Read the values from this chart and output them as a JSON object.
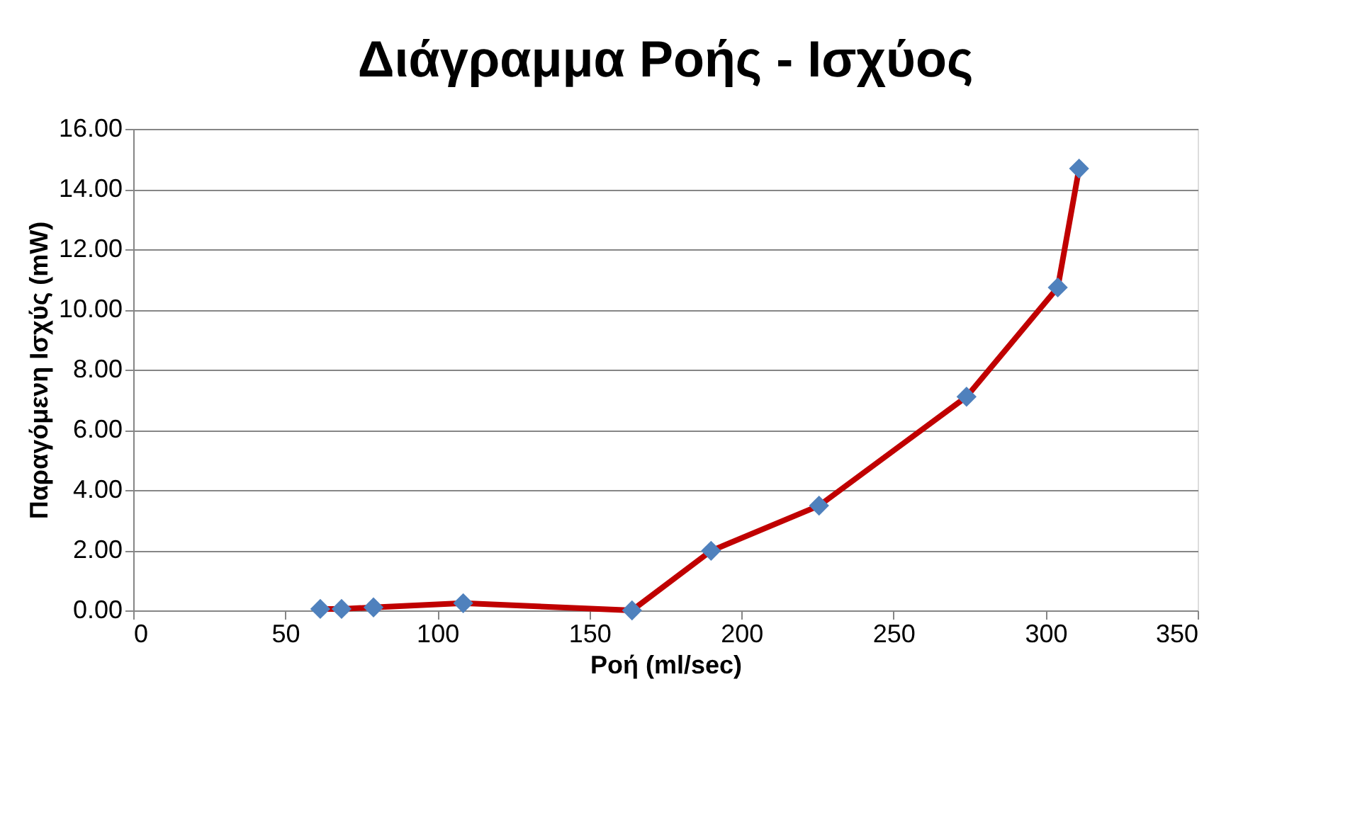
{
  "chart_data": {
    "type": "line",
    "title": "Διάγραμμα Ροής - Ισχύος",
    "xlabel": "Ροή (ml/sec)",
    "ylabel": "Παραγόμενη Ισχύς (mW)",
    "x": [
      61.5,
      68.5,
      79,
      108.5,
      164,
      190,
      225.5,
      274,
      304,
      311
    ],
    "series": [
      {
        "color": "#c00000",
        "values": [
          0.05,
          0.05,
          0.1,
          0.24,
          0.0,
          1.98,
          3.48,
          7.1,
          10.73,
          14.68
        ]
      }
    ],
    "xlim": [
      0,
      350
    ],
    "xticks": [
      0,
      50,
      100,
      150,
      200,
      250,
      300,
      350
    ],
    "ylim": [
      0,
      16
    ],
    "yticks": [
      {
        "value": 0,
        "label": "0.00"
      },
      {
        "value": 2,
        "label": "2.00"
      },
      {
        "value": 4,
        "label": "4.00"
      },
      {
        "value": 6,
        "label": "6.00"
      },
      {
        "value": 8,
        "label": "8.00"
      },
      {
        "value": 10,
        "label": "10.00"
      },
      {
        "value": 12,
        "label": "12.00"
      },
      {
        "value": 14,
        "label": "14.00"
      },
      {
        "value": 16,
        "label": "16.00"
      }
    ],
    "grid": "y",
    "marker": "diamond",
    "line_style": "solid"
  }
}
